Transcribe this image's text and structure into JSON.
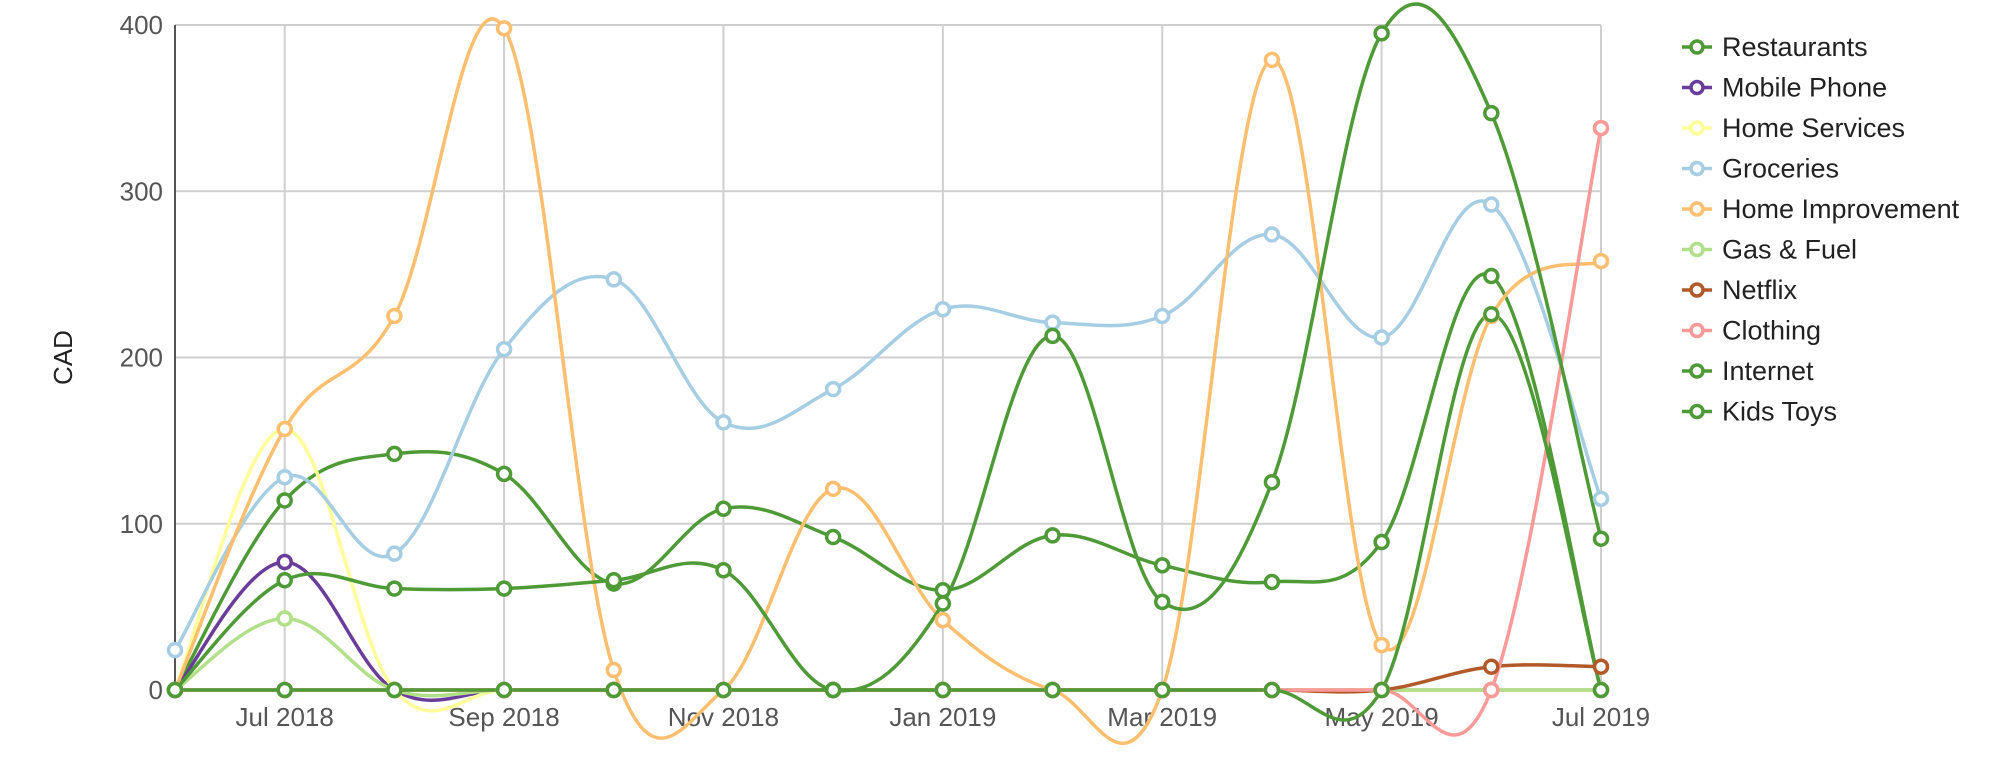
{
  "chart_data": {
    "type": "line",
    "ylabel": "CAD",
    "ylim": [
      0,
      400
    ],
    "yticks": [
      "0",
      "100",
      "200",
      "300",
      "400"
    ],
    "y_tick_values": [
      0,
      100,
      200,
      300,
      400
    ],
    "x": [
      "Jun 2018",
      "Jul 2018",
      "Aug 2018",
      "Sep 2018",
      "Oct 2018",
      "Nov 2018",
      "Dec 2018",
      "Jan 2019",
      "Feb 2019",
      "Mar 2019",
      "Apr 2019",
      "May 2019",
      "Jun 2019",
      "Jul 2019"
    ],
    "xtick_labels": [
      {
        "index": 1,
        "label": "Jul 2018"
      },
      {
        "index": 3,
        "label": "Sep 2018"
      },
      {
        "index": 5,
        "label": "Nov 2018"
      },
      {
        "index": 7,
        "label": "Jan 2019"
      },
      {
        "index": 9,
        "label": "Mar 2019"
      },
      {
        "index": 11,
        "label": "May 2019"
      },
      {
        "index": 13,
        "label": "Jul 2019"
      }
    ],
    "grid": true,
    "legend_position": "right",
    "series": [
      {
        "name": "Restaurants",
        "color": "#4e9a36",
        "values": [
          0,
          114,
          142,
          130,
          64,
          109,
          92,
          60,
          93,
          75,
          65,
          89,
          249,
          0
        ]
      },
      {
        "name": "Mobile Phone",
        "color": "#6a3d9a",
        "values": [
          0,
          77,
          0,
          0,
          0,
          0,
          0,
          0,
          0,
          0,
          0,
          0,
          0,
          0
        ]
      },
      {
        "name": "Home Services",
        "color": "#ffff99",
        "values": [
          0,
          157,
          0,
          0,
          0,
          0,
          0,
          0,
          0,
          0,
          0,
          0,
          0,
          0
        ]
      },
      {
        "name": "Groceries",
        "color": "#a6cee3",
        "values": [
          24,
          128,
          82,
          205,
          247,
          161,
          181,
          229,
          221,
          225,
          274,
          212,
          292,
          115
        ]
      },
      {
        "name": "Home Improvement",
        "color": "#fdbf6f",
        "values": [
          0,
          157,
          225,
          398,
          12,
          0,
          121,
          42,
          0,
          0,
          379,
          27,
          225,
          258
        ]
      },
      {
        "name": "Gas & Fuel",
        "color": "#b2df8a",
        "values": [
          0,
          43,
          0,
          0,
          0,
          0,
          0,
          0,
          0,
          0,
          0,
          0,
          0,
          0
        ]
      },
      {
        "name": "Netflix",
        "color": "#b15928",
        "values": [
          0,
          0,
          0,
          0,
          0,
          0,
          0,
          0,
          0,
          0,
          0,
          0,
          14,
          14
        ]
      },
      {
        "name": "Clothing",
        "color": "#fb9a99",
        "values": [
          0,
          0,
          0,
          0,
          0,
          0,
          0,
          0,
          0,
          0,
          0,
          0,
          0,
          338
        ]
      },
      {
        "name": "Internet",
        "color": "#4e9a36",
        "values": [
          0,
          66,
          61,
          61,
          66,
          72,
          0,
          52,
          213,
          53,
          125,
          395,
          347,
          91
        ]
      },
      {
        "name": "Kids Toys",
        "color": "#4e9a36",
        "values": [
          0,
          0,
          0,
          0,
          0,
          0,
          0,
          0,
          0,
          0,
          0,
          0,
          226,
          0
        ]
      }
    ]
  }
}
